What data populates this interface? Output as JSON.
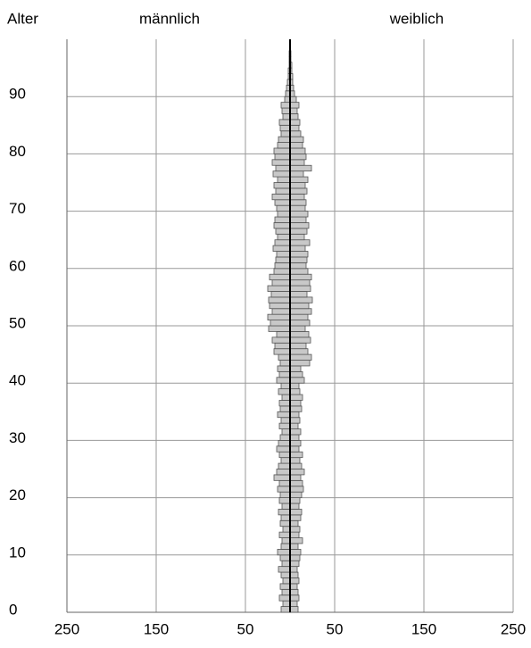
{
  "chart_data": {
    "type": "pyramid",
    "y_label": "Alter",
    "x": [
      0,
      1,
      2,
      3,
      4,
      5,
      6,
      7,
      8,
      9,
      10,
      11,
      12,
      13,
      14,
      15,
      16,
      17,
      18,
      19,
      20,
      21,
      22,
      23,
      24,
      25,
      26,
      27,
      28,
      29,
      30,
      31,
      32,
      33,
      34,
      35,
      36,
      37,
      38,
      39,
      40,
      41,
      42,
      43,
      44,
      45,
      46,
      47,
      48,
      49,
      50,
      51,
      52,
      53,
      54,
      55,
      56,
      57,
      58,
      59,
      60,
      61,
      62,
      63,
      64,
      65,
      66,
      67,
      68,
      69,
      70,
      71,
      72,
      73,
      74,
      75,
      76,
      77,
      78,
      79,
      80,
      81,
      82,
      83,
      84,
      85,
      86,
      87,
      88,
      89,
      90,
      91,
      92,
      93,
      94,
      95,
      96,
      97,
      98,
      99
    ],
    "series": [
      {
        "name": "männlich",
        "side": "left",
        "color": "#c8c8c8",
        "values": [
          10,
          8,
          12,
          9,
          11,
          8,
          10,
          13,
          9,
          11,
          14,
          10,
          9,
          12,
          8,
          11,
          10,
          13,
          9,
          12,
          11,
          14,
          12,
          18,
          15,
          13,
          10,
          12,
          15,
          13,
          11,
          9,
          12,
          10,
          14,
          11,
          12,
          9,
          13,
          10,
          15,
          12,
          14,
          11,
          13,
          18,
          17,
          20,
          15,
          24,
          22,
          25,
          20,
          23,
          24,
          21,
          25,
          20,
          23,
          18,
          17,
          16,
          15,
          19,
          17,
          14,
          16,
          18,
          17,
          14,
          15,
          17,
          20,
          16,
          18,
          14,
          19,
          16,
          20,
          17,
          18,
          14,
          13,
          10,
          11,
          12,
          8,
          9,
          10,
          6,
          5,
          4,
          3,
          2,
          2,
          1,
          1,
          1,
          0,
          0
        ]
      },
      {
        "name": "weiblich",
        "side": "right",
        "color": "#c8c8c8",
        "values": [
          9,
          8,
          10,
          9,
          8,
          10,
          9,
          8,
          10,
          11,
          12,
          9,
          14,
          10,
          11,
          9,
          12,
          13,
          10,
          11,
          13,
          15,
          14,
          12,
          16,
          13,
          11,
          14,
          10,
          12,
          10,
          12,
          9,
          11,
          10,
          13,
          12,
          14,
          11,
          10,
          16,
          14,
          12,
          22,
          24,
          20,
          18,
          23,
          21,
          17,
          22,
          20,
          24,
          21,
          25,
          19,
          23,
          22,
          24,
          20,
          18,
          19,
          20,
          17,
          22,
          16,
          19,
          21,
          18,
          20,
          17,
          18,
          16,
          19,
          17,
          20,
          15,
          24,
          16,
          18,
          17,
          14,
          15,
          12,
          10,
          11,
          9,
          8,
          10,
          7,
          5,
          4,
          3,
          3,
          2,
          2,
          1,
          1,
          0,
          0
        ]
      }
    ],
    "xlim": [
      -250,
      250
    ],
    "xticks": [
      {
        "value": -250,
        "label": "250"
      },
      {
        "value": -150,
        "label": "150"
      },
      {
        "value": -50,
        "label": "50"
      },
      {
        "value": 50,
        "label": "50"
      },
      {
        "value": 150,
        "label": "150"
      },
      {
        "value": 250,
        "label": "250"
      }
    ],
    "ylim": [
      0,
      100
    ],
    "yticks": [
      0,
      10,
      20,
      30,
      40,
      50,
      60,
      70,
      80,
      90
    ],
    "grid": true
  }
}
